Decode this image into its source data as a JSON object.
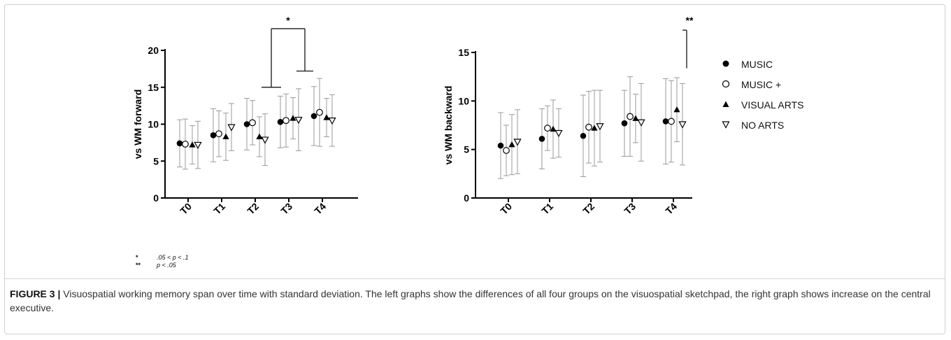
{
  "chart_data": [
    {
      "type": "scatter",
      "ylabel": "vs WM forward",
      "categories": [
        "T0",
        "T1",
        "T2",
        "T3",
        "T4"
      ],
      "ylim": [
        0,
        20
      ],
      "yticks": [
        0,
        5,
        10,
        15,
        20
      ],
      "series": [
        {
          "name": "MUSIC",
          "marker": "circle-filled",
          "values": [
            7.4,
            8.5,
            10.0,
            10.3,
            11.1
          ],
          "sd": [
            3.2,
            3.6,
            3.5,
            3.5,
            4.0
          ]
        },
        {
          "name": "MUSIC +",
          "marker": "circle-open",
          "values": [
            7.3,
            8.7,
            10.2,
            10.5,
            11.6
          ],
          "sd": [
            3.4,
            3.1,
            3.0,
            3.6,
            4.6
          ]
        },
        {
          "name": "VISUAL ARTS",
          "marker": "triangle-filled",
          "values": [
            7.2,
            8.3,
            8.3,
            10.8,
            10.9
          ],
          "sd": [
            2.6,
            3.2,
            2.7,
            2.8,
            2.6
          ]
        },
        {
          "name": "NO ARTS",
          "marker": "triangle-open",
          "values": [
            7.2,
            9.6,
            7.9,
            10.6,
            10.5
          ],
          "sd": [
            3.2,
            3.2,
            3.5,
            4.2,
            3.5
          ]
        }
      ],
      "annotations": [
        {
          "label": "*",
          "from": "T2",
          "to": "T3",
          "y_from": 15.0,
          "y_to": 17.2
        }
      ]
    },
    {
      "type": "scatter",
      "ylabel": "vs WM backward",
      "categories": [
        "T0",
        "T1",
        "T2",
        "T3",
        "T4"
      ],
      "ylim": [
        0,
        15
      ],
      "yticks": [
        0,
        5,
        10,
        15
      ],
      "series": [
        {
          "name": "MUSIC",
          "marker": "circle-filled",
          "values": [
            5.4,
            6.1,
            6.4,
            7.7,
            7.9
          ],
          "sd": [
            3.4,
            3.1,
            4.2,
            3.4,
            4.4
          ]
        },
        {
          "name": "MUSIC +",
          "marker": "circle-open",
          "values": [
            4.9,
            7.2,
            7.3,
            8.4,
            7.9
          ],
          "sd": [
            2.6,
            2.3,
            3.7,
            4.1,
            4.2
          ]
        },
        {
          "name": "VISUAL ARTS",
          "marker": "triangle-filled",
          "values": [
            5.5,
            7.1,
            7.2,
            8.2,
            9.1
          ],
          "sd": [
            3.1,
            3.0,
            3.9,
            2.5,
            3.3
          ]
        },
        {
          "name": "NO ARTS",
          "marker": "triangle-open",
          "values": [
            5.8,
            6.7,
            7.4,
            7.8,
            7.6
          ],
          "sd": [
            3.3,
            2.5,
            3.7,
            4.0,
            4.2
          ]
        }
      ],
      "annotations": [
        {
          "label": "**",
          "at": "T4",
          "y_from": 12.5,
          "y_to": 17.3
        }
      ]
    }
  ],
  "legend": {
    "items": [
      {
        "label": "MUSIC",
        "marker": "circle-filled"
      },
      {
        "label": "MUSIC +",
        "marker": "circle-open"
      },
      {
        "label": "VISUAL ARTS",
        "marker": "triangle-filled"
      },
      {
        "label": "NO ARTS",
        "marker": "triangle-open"
      }
    ]
  },
  "significance_notes": [
    {
      "symbol": "*",
      "text": ".05 < p < .1"
    },
    {
      "symbol": "**",
      "text": "p < .05"
    }
  ],
  "caption": {
    "label": "FIGURE 3 |",
    "text": " Visuospatial working memory span over time with standard deviation. The left graphs show the differences of all four groups on the visuospatial sketchpad, the right graph shows increase on the central executive."
  },
  "colors": {
    "marker": "#000000",
    "errorbar": "#9a9a9a",
    "axis": "#000000"
  }
}
